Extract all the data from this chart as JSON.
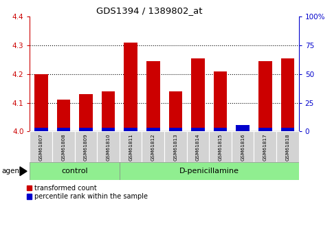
{
  "title": "GDS1394 / 1389802_at",
  "categories": [
    "GSM61807",
    "GSM61808",
    "GSM61809",
    "GSM61810",
    "GSM61811",
    "GSM61812",
    "GSM61813",
    "GSM61814",
    "GSM61815",
    "GSM61816",
    "GSM61817",
    "GSM61818"
  ],
  "red_values": [
    4.2,
    4.11,
    4.13,
    4.14,
    4.31,
    4.245,
    4.14,
    4.255,
    4.21,
    4.02,
    4.245,
    4.255
  ],
  "blue_values": [
    0.012,
    0.012,
    0.012,
    0.012,
    0.012,
    0.012,
    0.012,
    0.012,
    0.012,
    0.022,
    0.012,
    0.012
  ],
  "ymin": 4.0,
  "ymax": 4.4,
  "yleft_ticks": [
    4.0,
    4.1,
    4.2,
    4.3,
    4.4
  ],
  "yright_ticks": [
    0,
    25,
    50,
    75,
    100
  ],
  "bar_width": 0.6,
  "red_color": "#cc0000",
  "blue_color": "#0000cc",
  "control_label": "control",
  "treatment_label": "D-penicillamine",
  "agent_label": "agent",
  "legend_red": "transformed count",
  "legend_blue": "percentile rank within the sample",
  "left_axis_color": "#cc0000",
  "right_axis_color": "#0000cc",
  "n_control": 4,
  "n_treatment": 8
}
